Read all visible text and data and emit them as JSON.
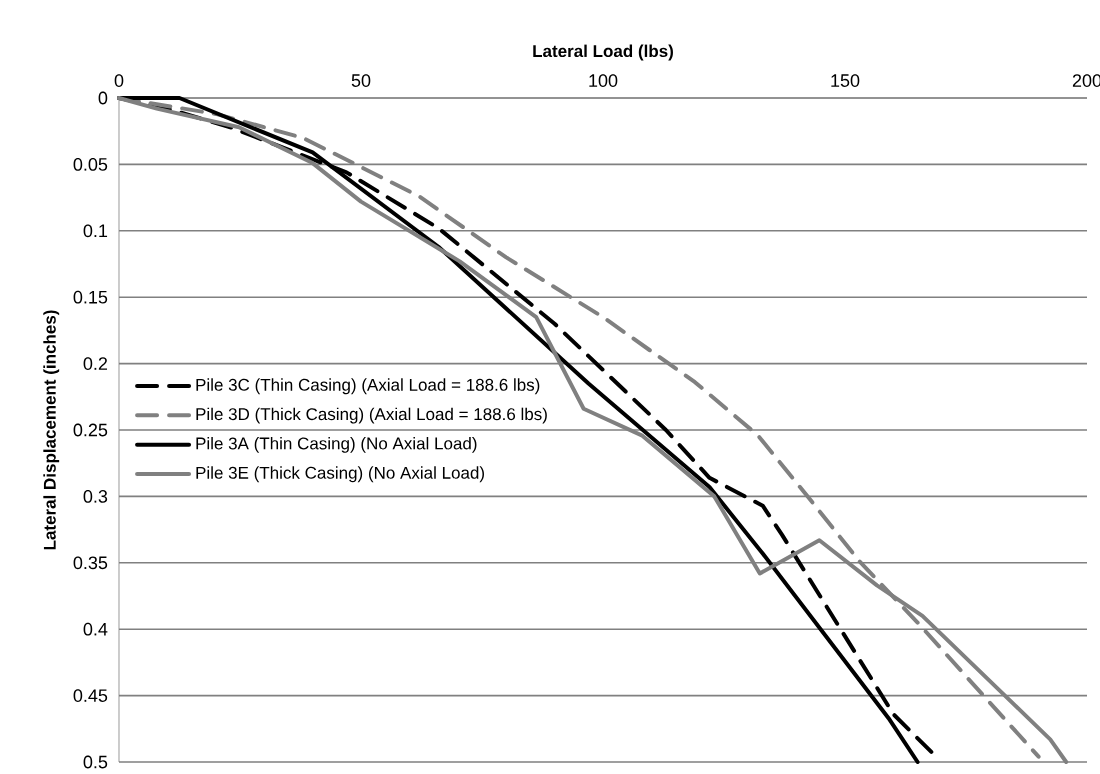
{
  "chart_data": {
    "type": "line",
    "xlabel": "Lateral Load (lbs)",
    "ylabel": "Lateral Displacement (inches)",
    "xlim": [
      0,
      200
    ],
    "xticks": [
      0,
      50,
      100,
      150,
      200
    ],
    "ylim": [
      0.5,
      0
    ],
    "yticks": [
      0,
      0.05,
      0.1,
      0.15,
      0.2,
      0.25,
      0.3,
      0.35,
      0.4,
      0.45,
      0.5
    ],
    "grid": "y",
    "legend": "left",
    "marker": "none",
    "series": [
      {
        "name": "Pile 3C (Thin Casing) (Axial Load = 188.6 lbs)",
        "color": "#000000",
        "line_style": "dashed",
        "x": [
          0,
          10,
          23,
          47,
          66,
          90,
          113,
          122,
          133,
          137,
          160,
          168
        ],
        "values": [
          0,
          0.008,
          0.022,
          0.056,
          0.098,
          0.17,
          0.25,
          0.286,
          0.307,
          0.329,
          0.464,
          0.493
        ]
      },
      {
        "name": "Pile 3D (Thick Casing) (Axial Load = 188.6 lbs)",
        "color": "#808080",
        "line_style": "dashed",
        "x": [
          0,
          20,
          38,
          62,
          80,
          100,
          119,
          132,
          142.5,
          153,
          165,
          190
        ],
        "values": [
          0,
          0.012,
          0.03,
          0.074,
          0.12,
          0.165,
          0.214,
          0.254,
          0.301,
          0.349,
          0.395,
          0.496
        ]
      },
      {
        "name": "Pile 3A (Thin Casing) (No Axial Load)",
        "color": "#000000",
        "line_style": "solid",
        "x": [
          0,
          12.5,
          40,
          66,
          97,
          122,
          133,
          159,
          165
        ],
        "values": [
          0,
          0,
          0.041,
          0.112,
          0.215,
          0.293,
          0.343,
          0.467,
          0.5
        ]
      },
      {
        "name": "Pile 3E (Thick Casing) (No Axial Load)",
        "color": "#808080",
        "line_style": "solid",
        "x": [
          0,
          7.8,
          24.8,
          40,
          50,
          70.4,
          86.2,
          96,
          108,
          123,
          132.4,
          144.7,
          156.6,
          166,
          192.4,
          195.7
        ],
        "values": [
          0,
          0.008,
          0.022,
          0.049,
          0.078,
          0.123,
          0.165,
          0.234,
          0.254,
          0.3,
          0.358,
          0.333,
          0.367,
          0.39,
          0.483,
          0.5
        ]
      }
    ]
  }
}
